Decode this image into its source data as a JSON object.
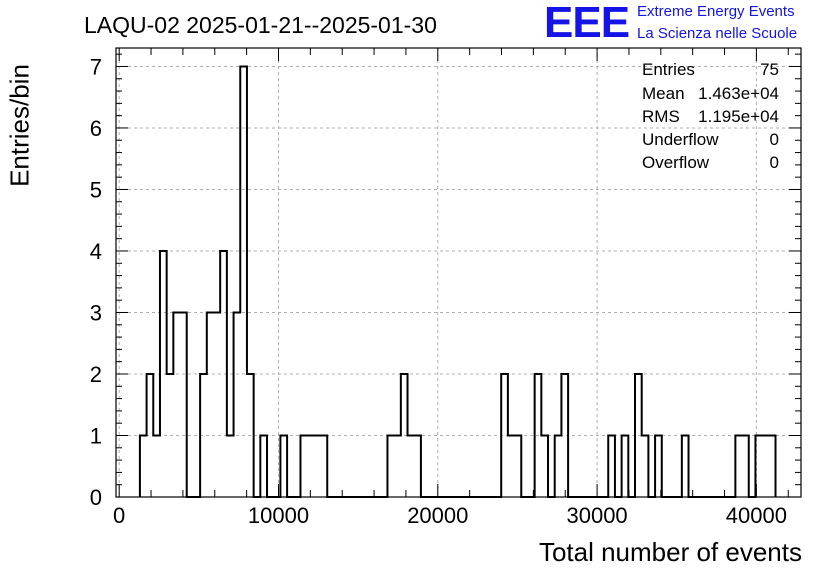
{
  "title": "LAQU-02 2025-01-21--2025-01-30",
  "logo": {
    "mark": "EEE",
    "line1": "Extreme Energy Events",
    "line2": "La Scienza nelle Scuole",
    "color": "#1414e6"
  },
  "stats": [
    {
      "label": "Entries",
      "value": "75"
    },
    {
      "label": "Mean",
      "value": "1.463e+04"
    },
    {
      "label": "RMS",
      "value": "1.195e+04"
    },
    {
      "label": "Underflow",
      "value": "0"
    },
    {
      "label": "Overflow",
      "value": "0"
    }
  ],
  "chart_data": {
    "type": "bar",
    "style": "step-histogram",
    "xlabel": "Total number of events",
    "ylabel": "Entries/bin",
    "xlim": [
      -200,
      42800
    ],
    "ylim": [
      0,
      7.3
    ],
    "bin_width": 420,
    "bins": [
      {
        "x": 1300,
        "y": 1
      },
      {
        "x": 1720,
        "y": 2
      },
      {
        "x": 2140,
        "y": 1
      },
      {
        "x": 2560,
        "y": 4
      },
      {
        "x": 2980,
        "y": 2
      },
      {
        "x": 3400,
        "y": 3
      },
      {
        "x": 3820,
        "y": 3
      },
      {
        "x": 5080,
        "y": 2
      },
      {
        "x": 5500,
        "y": 3
      },
      {
        "x": 5920,
        "y": 3
      },
      {
        "x": 6340,
        "y": 4
      },
      {
        "x": 6760,
        "y": 1
      },
      {
        "x": 7180,
        "y": 3
      },
      {
        "x": 7600,
        "y": 7
      },
      {
        "x": 8020,
        "y": 2
      },
      {
        "x": 8860,
        "y": 1
      },
      {
        "x": 10120,
        "y": 1
      },
      {
        "x": 11380,
        "y": 1
      },
      {
        "x": 11800,
        "y": 1
      },
      {
        "x": 12220,
        "y": 1
      },
      {
        "x": 12640,
        "y": 1
      },
      {
        "x": 16840,
        "y": 1
      },
      {
        "x": 17260,
        "y": 1
      },
      {
        "x": 17680,
        "y": 2
      },
      {
        "x": 18100,
        "y": 1
      },
      {
        "x": 18520,
        "y": 1
      },
      {
        "x": 23980,
        "y": 2
      },
      {
        "x": 24400,
        "y": 1
      },
      {
        "x": 24820,
        "y": 1
      },
      {
        "x": 26080,
        "y": 2
      },
      {
        "x": 26500,
        "y": 1
      },
      {
        "x": 27340,
        "y": 1
      },
      {
        "x": 27760,
        "y": 2
      },
      {
        "x": 30700,
        "y": 1
      },
      {
        "x": 31540,
        "y": 1
      },
      {
        "x": 32380,
        "y": 2
      },
      {
        "x": 32800,
        "y": 1
      },
      {
        "x": 33640,
        "y": 1
      },
      {
        "x": 35320,
        "y": 1
      },
      {
        "x": 38680,
        "y": 1
      },
      {
        "x": 39100,
        "y": 1
      },
      {
        "x": 39940,
        "y": 1
      },
      {
        "x": 40360,
        "y": 1
      },
      {
        "x": 40780,
        "y": 1
      }
    ],
    "x_ticks": [
      0,
      10000,
      20000,
      30000,
      40000
    ],
    "x_tick_labels": [
      "0",
      "10000",
      "20000",
      "30000",
      "40000"
    ],
    "y_ticks": [
      0,
      1,
      2,
      3,
      4,
      5,
      6,
      7
    ],
    "y_tick_labels": [
      "0",
      "1",
      "2",
      "3",
      "4",
      "5",
      "6",
      "7"
    ],
    "grid": true,
    "grid_style": "dashed",
    "legend": "stats box top-right"
  }
}
